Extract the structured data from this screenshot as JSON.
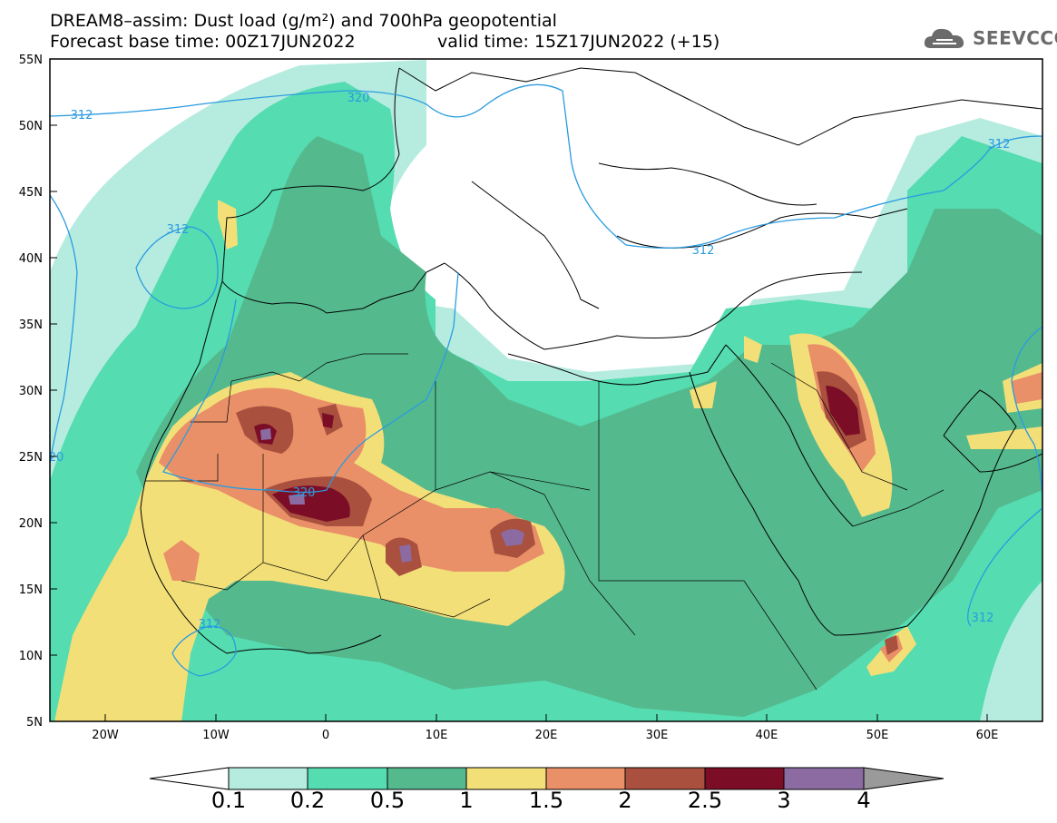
{
  "title": {
    "line1": "DREAM8–assim: Dust load (g/m²) and 700hPa geopotential",
    "line2": "Forecast base time: 00Z17JUN2022",
    "line2b": "valid time: 15Z17JUN2022 (+15)"
  },
  "logo": {
    "text": "SEEVCCC",
    "icon": "cloud-icon"
  },
  "axes": {
    "lat_labels": [
      "55N",
      "50N",
      "45N",
      "40N",
      "35N",
      "30N",
      "25N",
      "20N",
      "15N",
      "10N",
      "5N"
    ],
    "lon_labels": [
      "20W",
      "10W",
      "0",
      "10E",
      "20E",
      "30E",
      "40E",
      "50E",
      "60E"
    ]
  },
  "contour_labels": [
    "312",
    "320",
    "312",
    "312",
    "312",
    "312",
    "320",
    "312",
    "20"
  ],
  "colorbar": {
    "labels": [
      "0.1",
      "0.2",
      "0.5",
      "1",
      "1.5",
      "2",
      "2.5",
      "3",
      "4"
    ],
    "colors": [
      "#ffffff",
      "#b6ecdf",
      "#55dcb0",
      "#55b98e",
      "#f3df78",
      "#e99068",
      "#a9503f",
      "#7c0d27",
      "#8b6ba1",
      "#9a9a9a"
    ]
  },
  "colors": {
    "contour": "#2a9be0",
    "border": "#000000"
  }
}
